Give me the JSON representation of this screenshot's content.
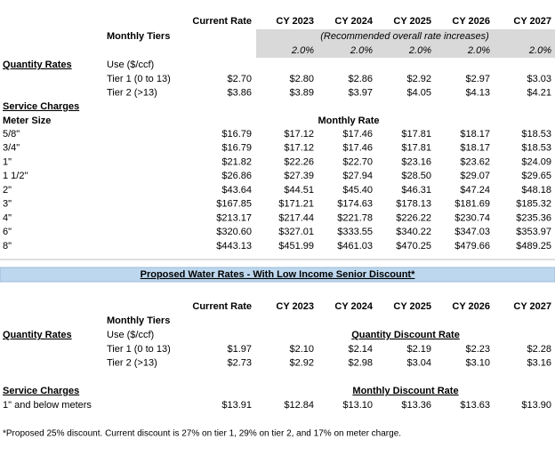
{
  "rates": {
    "columns": [
      "Current Rate",
      "CY 2023",
      "CY 2024",
      "CY 2025",
      "CY 2026",
      "CY 2027"
    ],
    "tiers_label": "Monthly Tiers",
    "increase_note": "(Recommended overall rate increases)",
    "increases": [
      "2.0%",
      "2.0%",
      "2.0%",
      "2.0%",
      "2.0%"
    ],
    "quantity": {
      "label": "Quantity Rates",
      "unit": "Use ($/ccf)",
      "rows": [
        {
          "label": "Tier 1 (0 to 13)",
          "values": [
            "$2.70",
            "$2.80",
            "$2.86",
            "$2.92",
            "$2.97",
            "$3.03"
          ]
        },
        {
          "label": "Tier 2 (>13)",
          "values": [
            "$3.86",
            "$3.89",
            "$3.97",
            "$4.05",
            "$4.13",
            "$4.21"
          ]
        }
      ]
    },
    "service": {
      "label": "Service Charges",
      "column_label": "Meter Size",
      "heading": "Monthly Rate",
      "rows": [
        {
          "label": "5/8\"",
          "values": [
            "$16.79",
            "$17.12",
            "$17.46",
            "$17.81",
            "$18.17",
            "$18.53"
          ]
        },
        {
          "label": "3/4\"",
          "values": [
            "$16.79",
            "$17.12",
            "$17.46",
            "$17.81",
            "$18.17",
            "$18.53"
          ]
        },
        {
          "label": "1\"",
          "values": [
            "$21.82",
            "$22.26",
            "$22.70",
            "$23.16",
            "$23.62",
            "$24.09"
          ]
        },
        {
          "label": "1 1/2\"",
          "values": [
            "$26.86",
            "$27.39",
            "$27.94",
            "$28.50",
            "$29.07",
            "$29.65"
          ]
        },
        {
          "label": "2\"",
          "values": [
            "$43.64",
            "$44.51",
            "$45.40",
            "$46.31",
            "$47.24",
            "$48.18"
          ]
        },
        {
          "label": "3\"",
          "values": [
            "$167.85",
            "$171.21",
            "$174.63",
            "$178.13",
            "$181.69",
            "$185.32"
          ]
        },
        {
          "label": "4\"",
          "values": [
            "$213.17",
            "$217.44",
            "$221.78",
            "$226.22",
            "$230.74",
            "$235.36"
          ]
        },
        {
          "label": "6\"",
          "values": [
            "$320.60",
            "$327.01",
            "$333.55",
            "$340.22",
            "$347.03",
            "$353.97"
          ]
        },
        {
          "label": "8\"",
          "values": [
            "$443.13",
            "$451.99",
            "$461.03",
            "$470.25",
            "$479.66",
            "$489.25"
          ]
        }
      ]
    }
  },
  "discount": {
    "title": "Proposed Water Rates - With Low Income Senior Discount*",
    "columns": [
      "Current Rate",
      "CY 2023",
      "CY 2024",
      "CY 2025",
      "CY 2026",
      "CY 2027"
    ],
    "tiers_label": "Monthly Tiers",
    "quantity": {
      "label": "Quantity Rates",
      "unit": "Use ($/ccf)",
      "heading": "Quantity Discount Rate",
      "rows": [
        {
          "label": "Tier 1 (0 to 13)",
          "values": [
            "$1.97",
            "$2.10",
            "$2.14",
            "$2.19",
            "$2.23",
            "$2.28"
          ]
        },
        {
          "label": "Tier 2 (>13)",
          "values": [
            "$2.73",
            "$2.92",
            "$2.98",
            "$3.04",
            "$3.10",
            "$3.16"
          ]
        }
      ]
    },
    "service": {
      "label": "Service Charges",
      "heading": "Monthly Discount Rate",
      "rows": [
        {
          "label": "1\" and below meters",
          "values": [
            "$13.91",
            "$12.84",
            "$13.10",
            "$13.36",
            "$13.63",
            "$13.90"
          ]
        }
      ]
    },
    "footnote": "*Proposed 25% discount. Current discount is 27% on tier 1, 29% on tier 2, and 17% on meter charge."
  }
}
